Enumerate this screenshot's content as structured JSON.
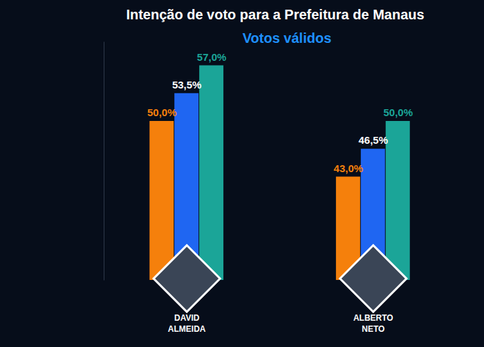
{
  "chart_data": {
    "type": "bar",
    "title": "Intenção de voto para a Prefeitura de Manaus",
    "subtitle": "Votos válidos",
    "categories": [
      "DAVID ALMEIDA",
      "ALBERTO NETO"
    ],
    "series": [
      {
        "color": "#f5800c",
        "values": [
          50.0,
          43.0
        ],
        "value_labels": [
          "50,0%",
          "43,0%"
        ]
      },
      {
        "color": "#1f66f2",
        "values": [
          53.5,
          46.5
        ],
        "value_labels": [
          "53,5%",
          "46,5%"
        ]
      },
      {
        "color": "#1ba598",
        "values": [
          57.0,
          50.0
        ],
        "value_labels": [
          "57,0%",
          "50,0%"
        ]
      }
    ],
    "ylim": [
      30,
      60
    ],
    "yticks": [],
    "grid": false,
    "data_labels": true,
    "tick_labels": "x"
  }
}
